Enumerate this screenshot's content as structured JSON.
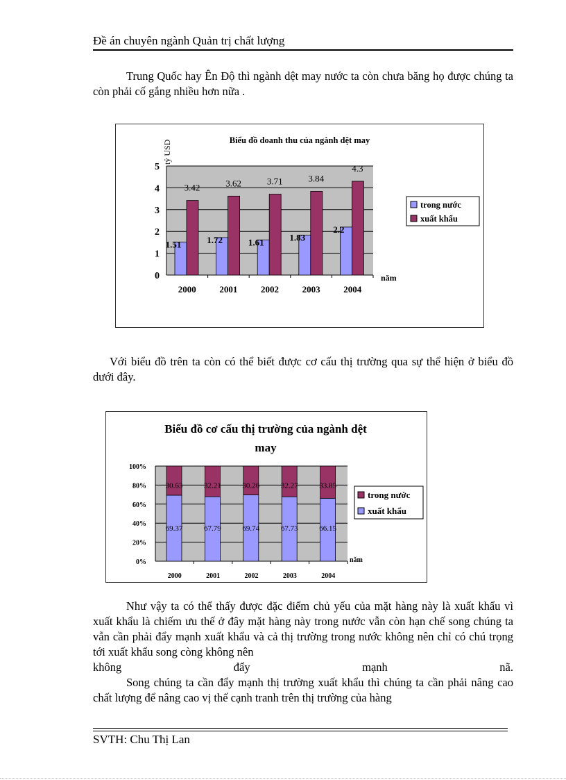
{
  "header": {
    "title": "Đề án chuyên ngành Quản trị chất lượng"
  },
  "paragraphs": {
    "p1": "Trung Quốc hay Ên Độ thì ngành dệt may nước ta còn chưa băng họ được chúng ta còn phải cố gắng nhiều hơn nữa .",
    "p2": "Với biểu đồ trên ta còn có thể biết được cơ cấu thị trường qua sự thể hiện ở biểu đồ dưới đây.",
    "p3": "Như vậy ta có thể thấy được đặc điểm chủ yếu của mặt hàng này là xuất khẩu vì xuất khẩu là chiếm ưu thế ở đây mặt hàng này trong nước vẫn còn hạn chế song chúng ta vẫn cần phải đẩy mạnh xuất khẩu và cả thị trường trong nước không nên chỉ có chú trọng tới xuất khẩu song còng không nên",
    "p3_last": [
      "không",
      "đẩy",
      "mạnh",
      "nã."
    ],
    "p4": "Song chúng ta cần đẩy mạnh thị trường xuất khẩu thì chúng ta cần phải nâng cao chất lượng để nâng cao vị thế cạnh tranh trên thị trường của hàng"
  },
  "footer": {
    "author": "SVTH: Chu Thị Lan"
  },
  "chart_data": [
    {
      "type": "bar",
      "title": "Biểu đồ doanh thu của ngành dệt may",
      "ylabel": "tỷ USD",
      "xlabel": "năm",
      "categories": [
        "2000",
        "2001",
        "2002",
        "2003",
        "2004"
      ],
      "ylim": [
        0,
        5
      ],
      "yticks": [
        "0",
        "1",
        "2",
        "3",
        "4",
        "5"
      ],
      "grid": true,
      "legend_position": "right",
      "series": [
        {
          "name": "trong nước",
          "color": "#9999ff",
          "values": [
            1.51,
            1.72,
            1.61,
            1.83,
            2.2
          ],
          "labels": [
            "1.51",
            "1.72",
            "1.61",
            "1.83",
            "2.2"
          ]
        },
        {
          "name": "xuất khẩu",
          "color": "#993366",
          "values": [
            3.42,
            3.62,
            3.71,
            3.84,
            4.3
          ],
          "labels": [
            "3.42",
            "3.62",
            "3.71",
            "3.84",
            "4.3"
          ]
        }
      ]
    },
    {
      "type": "bar",
      "stacked": "percent",
      "title": "Biểu đồ cơ cấu thị trường của ngành dệt may",
      "xlabel": "năm",
      "categories": [
        "2000",
        "2001",
        "2002",
        "2003",
        "2004"
      ],
      "ylim": [
        0,
        100
      ],
      "yticks": [
        "0%",
        "20%",
        "40%",
        "60%",
        "80%",
        "100%"
      ],
      "grid": true,
      "legend_position": "right",
      "legend": [
        {
          "name": "trong nước",
          "color": "#993366"
        },
        {
          "name": "xuất khẩu",
          "color": "#9999ff"
        }
      ],
      "series": [
        {
          "name": "xuất khẩu (bottom)",
          "color": "#9999ff",
          "values": [
            69.37,
            67.79,
            69.74,
            67.73,
            66.15
          ],
          "labels": [
            "69.37",
            "67.79",
            "69.74",
            "67.73",
            "66.15"
          ]
        },
        {
          "name": "trong nước (top)",
          "color": "#993366",
          "values": [
            30.63,
            32.21,
            30.26,
            32.27,
            33.85
          ],
          "labels": [
            "30.63",
            "32.21",
            "30.26",
            "32.27",
            "33.85"
          ]
        }
      ]
    }
  ]
}
